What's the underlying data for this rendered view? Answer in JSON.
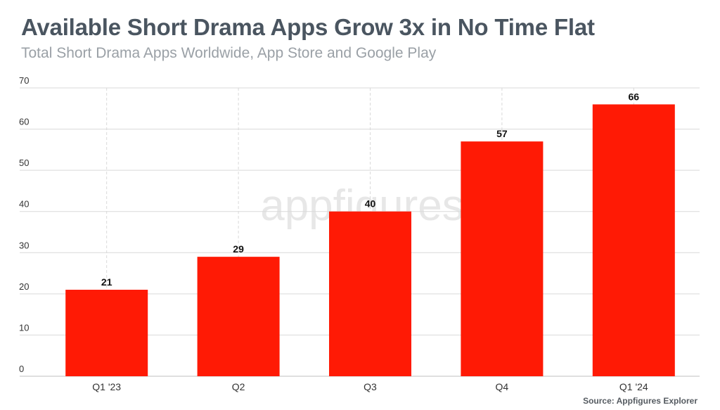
{
  "header": {
    "title": "Available Short Drama Apps Grow 3x in No Time Flat",
    "subtitle": "Total Short Drama Apps Worldwide, App Store and Google Play"
  },
  "watermark": "appfigures",
  "source": "Source: Appfigures Explorer",
  "colors": {
    "bar": "#ff1a05",
    "grid": "#d9d9d9",
    "title": "#4a5560",
    "subtitle": "#9aa0a6"
  },
  "chart_data": {
    "type": "bar",
    "title": "Available Short Drama Apps Grow 3x in No Time Flat",
    "subtitle": "Total Short Drama Apps Worldwide, App Store and Google Play",
    "categories": [
      "Q1 '23",
      "Q2",
      "Q3",
      "Q4",
      "Q1 '24"
    ],
    "values": [
      21,
      29,
      40,
      57,
      66
    ],
    "data_labels": [
      "21",
      "29",
      "40",
      "57",
      "66"
    ],
    "xlabel": "",
    "ylabel": "",
    "ylim": [
      0,
      70
    ],
    "yticks": [
      0,
      10,
      20,
      30,
      40,
      50,
      60,
      70
    ],
    "grid": true,
    "legend": "none"
  }
}
